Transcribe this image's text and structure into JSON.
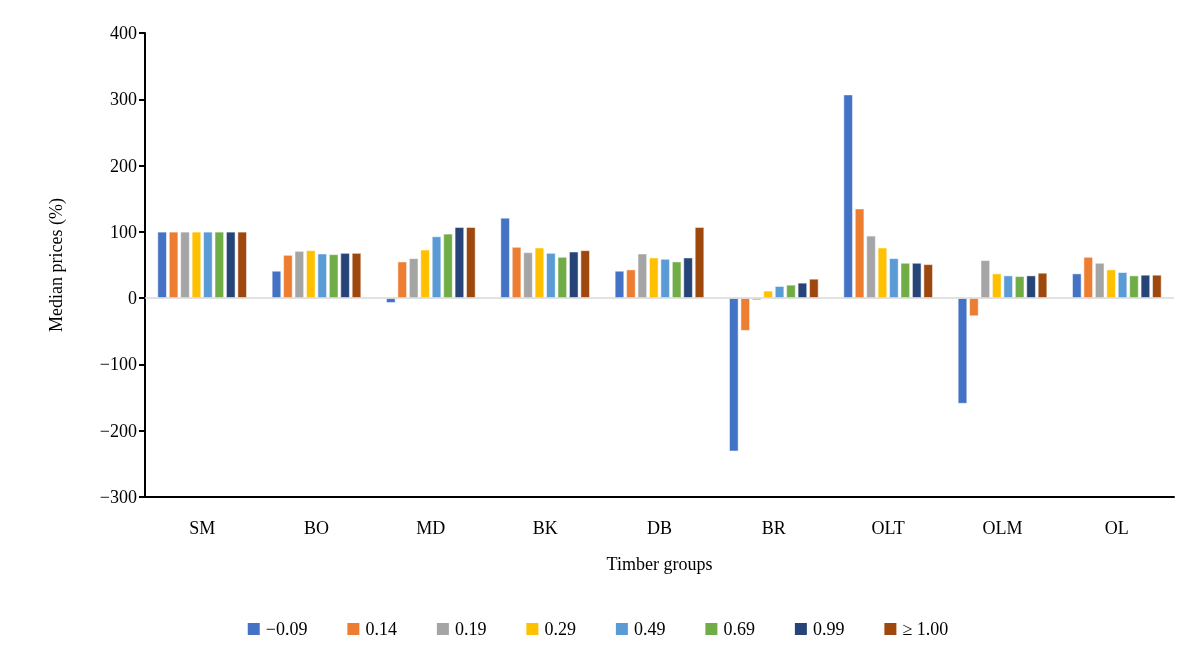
{
  "chart_data": {
    "type": "bar",
    "xlabel": "Timber groups",
    "ylabel": "Median prices (%)",
    "categories": [
      "SM",
      "BO",
      "MD",
      "BK",
      "DB",
      "BR",
      "OLT",
      "OLM",
      "OL"
    ],
    "series": [
      {
        "name": "−0.09",
        "color": "#4472c4",
        "values": [
          100,
          41,
          -7,
          121,
          41,
          -231,
          307,
          -159,
          37
        ]
      },
      {
        "name": "0.14",
        "color": "#ed7d31",
        "values": [
          100,
          65,
          55,
          77,
          43,
          -49,
          135,
          -27,
          62
        ]
      },
      {
        "name": "0.19",
        "color": "#a5a5a5",
        "values": [
          100,
          71,
          60,
          69,
          67,
          -3,
          94,
          57,
          53
        ]
      },
      {
        "name": "0.29",
        "color": "#ffc000",
        "values": [
          100,
          72,
          73,
          76,
          61,
          11,
          76,
          37,
          43
        ]
      },
      {
        "name": "0.49",
        "color": "#5b9bd5",
        "values": [
          100,
          67,
          93,
          68,
          59,
          18,
          60,
          34,
          39
        ]
      },
      {
        "name": "0.69",
        "color": "#70ad47",
        "values": [
          100,
          66,
          97,
          62,
          55,
          20,
          53,
          33,
          34
        ]
      },
      {
        "name": "0.99",
        "color": "#264478",
        "values": [
          100,
          68,
          107,
          70,
          61,
          23,
          53,
          34,
          35
        ]
      },
      {
        "name": "≥ 1.00",
        "color": "#9e480e",
        "values": [
          100,
          68,
          107,
          72,
          107,
          29,
          51,
          38,
          35
        ]
      }
    ],
    "ylim": [
      -300,
      400
    ],
    "yticks": [
      {
        "value": -300,
        "label": "−300"
      },
      {
        "value": -200,
        "label": "−200"
      },
      {
        "value": -100,
        "label": "−100"
      },
      0,
      100,
      200,
      300,
      400
    ],
    "ref_lines": [
      {
        "axis": "y",
        "value": 0,
        "color": "#d9d9d9"
      }
    ],
    "legend": "bottom"
  }
}
